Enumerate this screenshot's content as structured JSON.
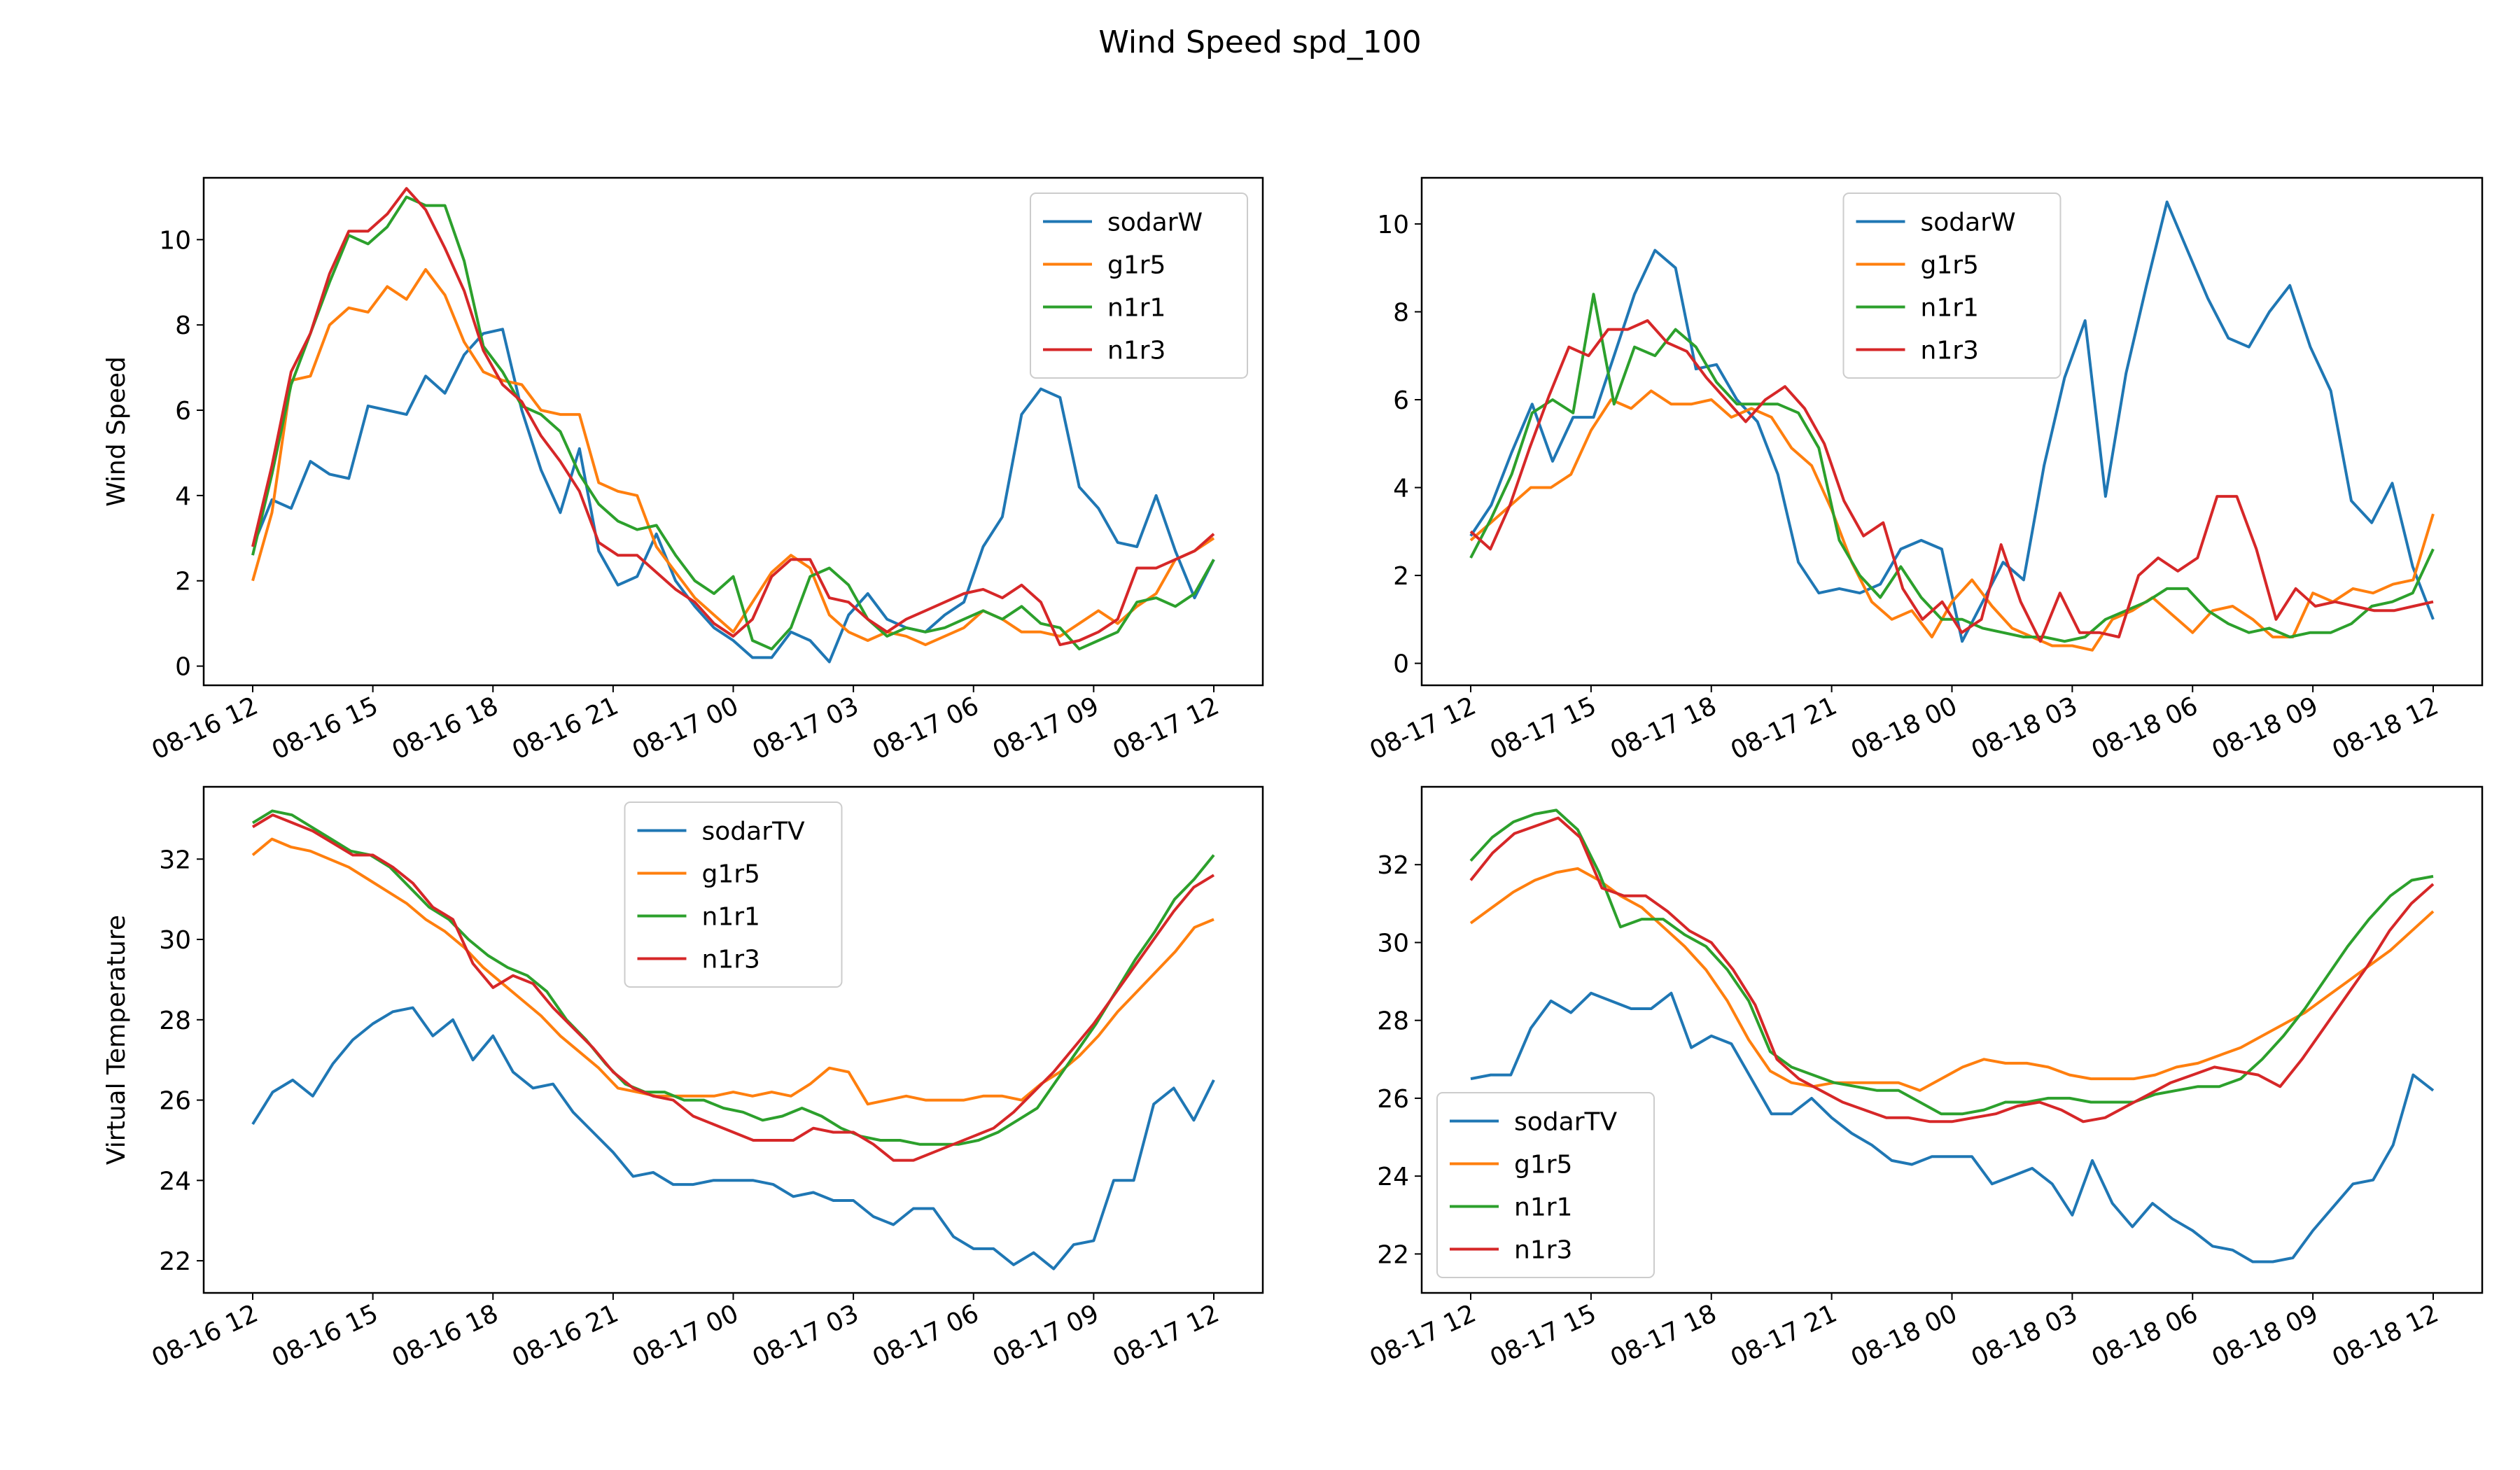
{
  "figure": {
    "title": "Wind Speed spd_100"
  },
  "colors": {
    "sodar": "#1f77b4",
    "g1r5": "#ff7f0e",
    "n1r1": "#2ca02c",
    "n1r3": "#d62728"
  },
  "chart_data": [
    {
      "type": "line",
      "panel": "top-left",
      "ylabel": "Wind Speed",
      "xlabel": "",
      "ylim": [
        -0.45,
        11.45
      ],
      "yticks": [
        0,
        2,
        4,
        6,
        8,
        10
      ],
      "x_start": "08-16 12",
      "x_ticks": [
        "08-16 12",
        "08-16 15",
        "08-16 18",
        "08-16 21",
        "08-17 00",
        "08-17 03",
        "08-17 06",
        "08-17 09",
        "08-17 12"
      ],
      "legend_position": "upper right",
      "series": [
        {
          "name": "sodarW",
          "color_key": "sodar",
          "values": [
            2.8,
            3.9,
            3.7,
            4.8,
            4.5,
            4.4,
            6.1,
            6.0,
            5.9,
            6.8,
            6.4,
            7.3,
            7.8,
            7.9,
            6.0,
            4.6,
            3.6,
            5.1,
            2.7,
            1.9,
            2.1,
            3.1,
            2.0,
            1.4,
            0.9,
            0.6,
            0.2,
            0.2,
            0.8,
            0.6,
            0.1,
            1.2,
            1.7,
            1.1,
            0.9,
            0.8,
            1.2,
            1.5,
            2.8,
            3.5,
            5.9,
            6.5,
            6.3,
            4.2,
            3.7,
            2.9,
            2.8,
            4.0,
            2.7,
            1.6,
            2.5
          ]
        },
        {
          "name": "g1r5",
          "color_key": "g1r5",
          "values": [
            2.0,
            3.6,
            6.7,
            6.8,
            8.0,
            8.4,
            8.3,
            8.9,
            8.6,
            9.3,
            8.7,
            7.6,
            6.9,
            6.7,
            6.6,
            6.0,
            5.9,
            5.9,
            4.3,
            4.1,
            4.0,
            2.8,
            2.2,
            1.6,
            1.2,
            0.8,
            1.5,
            2.2,
            2.6,
            2.3,
            1.2,
            0.8,
            0.6,
            0.8,
            0.7,
            0.5,
            0.7,
            0.9,
            1.3,
            1.1,
            0.8,
            0.8,
            0.7,
            1.0,
            1.3,
            1.0,
            1.4,
            1.7,
            2.5,
            2.7,
            3.0
          ]
        },
        {
          "name": "n1r1",
          "color_key": "n1r1",
          "values": [
            2.6,
            4.5,
            6.6,
            7.8,
            9.0,
            10.1,
            9.9,
            10.3,
            11.0,
            10.8,
            10.8,
            9.5,
            7.5,
            6.9,
            6.1,
            5.9,
            5.5,
            4.5,
            3.8,
            3.4,
            3.2,
            3.3,
            2.6,
            2.0,
            1.7,
            2.1,
            0.6,
            0.4,
            0.9,
            2.1,
            2.3,
            1.9,
            1.1,
            0.7,
            0.9,
            0.8,
            0.9,
            1.1,
            1.3,
            1.1,
            1.4,
            1.0,
            0.9,
            0.4,
            0.6,
            0.8,
            1.5,
            1.6,
            1.4,
            1.7,
            2.5
          ]
        },
        {
          "name": "n1r3",
          "color_key": "n1r3",
          "values": [
            2.8,
            4.7,
            6.9,
            7.8,
            9.2,
            10.2,
            10.2,
            10.6,
            11.2,
            10.7,
            9.8,
            8.8,
            7.4,
            6.6,
            6.2,
            5.4,
            4.8,
            4.1,
            2.9,
            2.6,
            2.6,
            2.2,
            1.8,
            1.5,
            1.0,
            0.7,
            1.1,
            2.1,
            2.5,
            2.5,
            1.6,
            1.5,
            1.1,
            0.8,
            1.1,
            1.3,
            1.5,
            1.7,
            1.8,
            1.6,
            1.9,
            1.5,
            0.5,
            0.6,
            0.8,
            1.1,
            2.3,
            2.3,
            2.5,
            2.7,
            3.1
          ]
        }
      ]
    },
    {
      "type": "line",
      "panel": "top-right",
      "ylabel": "",
      "xlabel": "",
      "ylim": [
        -0.5,
        11.05
      ],
      "yticks": [
        0,
        2,
        4,
        6,
        8,
        10
      ],
      "x_start": "08-17 12",
      "x_ticks": [
        "08-17 12",
        "08-17 15",
        "08-17 18",
        "08-17 21",
        "08-18 00",
        "08-18 03",
        "08-18 06",
        "08-18 09",
        "08-18 12"
      ],
      "legend_position": "upper center",
      "series": [
        {
          "name": "sodarW",
          "color_key": "sodar",
          "values": [
            2.9,
            3.6,
            4.8,
            5.9,
            4.6,
            5.6,
            5.6,
            7.0,
            8.4,
            9.4,
            9.0,
            6.7,
            6.8,
            6.0,
            5.5,
            4.3,
            2.3,
            1.6,
            1.7,
            1.6,
            1.8,
            2.6,
            2.8,
            2.6,
            0.5,
            1.4,
            2.3,
            1.9,
            4.5,
            6.5,
            7.8,
            3.8,
            6.6,
            8.6,
            10.5,
            9.4,
            8.3,
            7.4,
            7.2,
            8.0,
            8.6,
            7.2,
            6.2,
            3.7,
            3.2,
            4.1,
            2.2,
            1.0
          ]
        },
        {
          "name": "g1r5",
          "color_key": "g1r5",
          "values": [
            2.8,
            3.2,
            3.6,
            4.0,
            4.0,
            4.3,
            5.3,
            6.0,
            5.8,
            6.2,
            5.9,
            5.9,
            6.0,
            5.6,
            5.8,
            5.6,
            4.9,
            4.5,
            3.5,
            2.3,
            1.4,
            1.0,
            1.2,
            0.6,
            1.4,
            1.9,
            1.3,
            0.8,
            0.6,
            0.4,
            0.4,
            0.3,
            1.0,
            1.2,
            1.5,
            1.1,
            0.7,
            1.2,
            1.3,
            1.0,
            0.6,
            0.6,
            1.6,
            1.4,
            1.7,
            1.6,
            1.8,
            1.9,
            3.4
          ]
        },
        {
          "name": "n1r1",
          "color_key": "n1r1",
          "values": [
            2.4,
            3.3,
            4.3,
            5.7,
            6.0,
            5.7,
            8.4,
            5.9,
            7.2,
            7.0,
            7.6,
            7.2,
            6.4,
            5.9,
            5.9,
            5.9,
            5.7,
            4.9,
            2.8,
            2.0,
            1.5,
            2.2,
            1.5,
            1.0,
            1.0,
            0.8,
            0.7,
            0.6,
            0.6,
            0.5,
            0.6,
            1.0,
            1.2,
            1.4,
            1.7,
            1.7,
            1.2,
            0.9,
            0.7,
            0.8,
            0.6,
            0.7,
            0.7,
            0.9,
            1.3,
            1.4,
            1.6,
            2.6
          ]
        },
        {
          "name": "n1r3",
          "color_key": "n1r3",
          "values": [
            3.0,
            2.6,
            3.6,
            4.9,
            6.1,
            7.2,
            7.0,
            7.6,
            7.6,
            7.8,
            7.3,
            7.1,
            6.5,
            6.0,
            5.5,
            6.0,
            6.3,
            5.8,
            5.0,
            3.7,
            2.9,
            3.2,
            1.7,
            1.0,
            1.4,
            0.7,
            1.0,
            2.7,
            1.4,
            0.5,
            1.6,
            0.7,
            0.7,
            0.6,
            2.0,
            2.4,
            2.1,
            2.4,
            3.8,
            3.8,
            2.6,
            1.0,
            1.7,
            1.3,
            1.4,
            1.3,
            1.2,
            1.2,
            1.3,
            1.4
          ]
        }
      ]
    },
    {
      "type": "line",
      "panel": "bottom-left",
      "ylabel": "Virtual Temperature",
      "xlabel": "",
      "ylim": [
        21.2,
        33.8
      ],
      "yticks": [
        22,
        24,
        26,
        28,
        30,
        32
      ],
      "x_start": "08-16 12",
      "x_ticks": [
        "08-16 12",
        "08-16 15",
        "08-16 18",
        "08-16 21",
        "08-17 00",
        "08-17 03",
        "08-17 06",
        "08-17 09",
        "08-17 12"
      ],
      "legend_position": "upper center",
      "series": [
        {
          "name": "sodarTV",
          "color_key": "sodar",
          "values": [
            25.4,
            26.2,
            26.5,
            26.1,
            26.9,
            27.5,
            27.9,
            28.2,
            28.3,
            27.6,
            28.0,
            27.0,
            27.6,
            26.7,
            26.3,
            26.4,
            25.7,
            25.2,
            24.7,
            24.1,
            24.2,
            23.9,
            23.9,
            24.0,
            24.0,
            24.0,
            23.9,
            23.6,
            23.7,
            23.5,
            23.5,
            23.1,
            22.9,
            23.3,
            23.3,
            22.6,
            22.3,
            22.3,
            21.9,
            22.2,
            21.8,
            22.4,
            22.5,
            24.0,
            24.0,
            25.9,
            26.3,
            25.5,
            26.5
          ]
        },
        {
          "name": "g1r5",
          "color_key": "g1r5",
          "values": [
            32.1,
            32.5,
            32.3,
            32.2,
            32.0,
            31.8,
            31.5,
            31.2,
            30.9,
            30.5,
            30.2,
            29.8,
            29.3,
            28.9,
            28.5,
            28.1,
            27.6,
            27.2,
            26.8,
            26.3,
            26.2,
            26.1,
            26.1,
            26.1,
            26.1,
            26.2,
            26.1,
            26.2,
            26.1,
            26.4,
            26.8,
            26.7,
            25.9,
            26.0,
            26.1,
            26.0,
            26.0,
            26.0,
            26.1,
            26.1,
            26.0,
            26.4,
            26.7,
            27.1,
            27.6,
            28.2,
            28.7,
            29.2,
            29.7,
            30.3,
            30.5
          ]
        },
        {
          "name": "n1r1",
          "color_key": "n1r1",
          "values": [
            32.9,
            33.2,
            33.1,
            32.8,
            32.5,
            32.2,
            32.1,
            31.8,
            31.3,
            30.8,
            30.5,
            30.0,
            29.6,
            29.3,
            29.1,
            28.7,
            28.0,
            27.5,
            26.9,
            26.4,
            26.2,
            26.2,
            26.0,
            26.0,
            25.8,
            25.7,
            25.5,
            25.6,
            25.8,
            25.6,
            25.3,
            25.1,
            25.0,
            25.0,
            24.9,
            24.9,
            24.9,
            25.0,
            25.2,
            25.5,
            25.8,
            26.5,
            27.2,
            27.9,
            28.7,
            29.5,
            30.2,
            31.0,
            31.5,
            32.1
          ]
        },
        {
          "name": "n1r3",
          "color_key": "n1r3",
          "values": [
            32.8,
            33.1,
            32.9,
            32.7,
            32.4,
            32.1,
            32.1,
            31.8,
            31.4,
            30.8,
            30.5,
            29.4,
            28.8,
            29.1,
            28.9,
            28.3,
            27.8,
            27.3,
            26.7,
            26.3,
            26.1,
            26.0,
            25.6,
            25.4,
            25.2,
            25.0,
            25.0,
            25.0,
            25.3,
            25.2,
            25.2,
            24.9,
            24.5,
            24.5,
            24.7,
            24.9,
            25.1,
            25.3,
            25.7,
            26.2,
            26.7,
            27.3,
            27.9,
            28.6,
            29.3,
            30.0,
            30.7,
            31.3,
            31.6
          ]
        }
      ]
    },
    {
      "type": "line",
      "panel": "bottom-right",
      "ylabel": "",
      "xlabel": "",
      "ylim": [
        21.0,
        34.0
      ],
      "yticks": [
        22,
        24,
        26,
        28,
        30,
        32
      ],
      "x_start": "08-17 12",
      "x_ticks": [
        "08-17 12",
        "08-17 15",
        "08-17 18",
        "08-17 21",
        "08-18 00",
        "08-18 03",
        "08-18 06",
        "08-18 09",
        "08-18 12"
      ],
      "legend_position": "lower left",
      "series": [
        {
          "name": "sodarTV",
          "color_key": "sodar",
          "values": [
            26.5,
            26.6,
            26.6,
            27.8,
            28.5,
            28.2,
            28.7,
            28.5,
            28.3,
            28.3,
            28.7,
            27.3,
            27.6,
            27.4,
            26.5,
            25.6,
            25.6,
            26.0,
            25.5,
            25.1,
            24.8,
            24.4,
            24.3,
            24.5,
            24.5,
            24.5,
            23.8,
            24.0,
            24.2,
            23.8,
            23.0,
            24.4,
            23.3,
            22.7,
            23.3,
            22.9,
            22.6,
            22.2,
            22.1,
            21.8,
            21.8,
            21.9,
            22.6,
            23.2,
            23.8,
            23.9,
            24.8,
            26.6,
            26.2
          ]
        },
        {
          "name": "g1r5",
          "color_key": "g1r5",
          "values": [
            30.5,
            30.9,
            31.3,
            31.6,
            31.8,
            31.9,
            31.6,
            31.2,
            30.9,
            30.4,
            29.9,
            29.3,
            28.5,
            27.5,
            26.7,
            26.4,
            26.3,
            26.4,
            26.4,
            26.4,
            26.4,
            26.2,
            26.5,
            26.8,
            27.0,
            26.9,
            26.9,
            26.8,
            26.6,
            26.5,
            26.5,
            26.5,
            26.6,
            26.8,
            26.9,
            27.1,
            27.3,
            27.6,
            27.9,
            28.2,
            28.6,
            29.0,
            29.4,
            29.8,
            30.3,
            30.8
          ]
        },
        {
          "name": "n1r1",
          "color_key": "n1r1",
          "values": [
            32.1,
            32.7,
            33.1,
            33.3,
            33.4,
            32.9,
            31.8,
            30.4,
            30.6,
            30.6,
            30.2,
            29.9,
            29.3,
            28.5,
            27.2,
            26.8,
            26.6,
            26.4,
            26.3,
            26.2,
            26.2,
            25.9,
            25.6,
            25.6,
            25.7,
            25.9,
            25.9,
            26.0,
            26.0,
            25.9,
            25.9,
            25.9,
            26.1,
            26.2,
            26.3,
            26.3,
            26.5,
            27.0,
            27.6,
            28.3,
            29.1,
            29.9,
            30.6,
            31.2,
            31.6,
            31.7
          ]
        },
        {
          "name": "n1r3",
          "color_key": "n1r3",
          "values": [
            31.6,
            32.3,
            32.8,
            33.0,
            33.2,
            32.7,
            31.4,
            31.2,
            31.2,
            30.8,
            30.3,
            30.0,
            29.3,
            28.4,
            27.0,
            26.5,
            26.2,
            25.9,
            25.7,
            25.5,
            25.5,
            25.4,
            25.4,
            25.5,
            25.6,
            25.8,
            25.9,
            25.7,
            25.4,
            25.5,
            25.8,
            26.1,
            26.4,
            26.6,
            26.8,
            26.7,
            26.6,
            26.3,
            27.0,
            27.8,
            28.6,
            29.4,
            30.3,
            31.0,
            31.5
          ]
        }
      ]
    }
  ]
}
